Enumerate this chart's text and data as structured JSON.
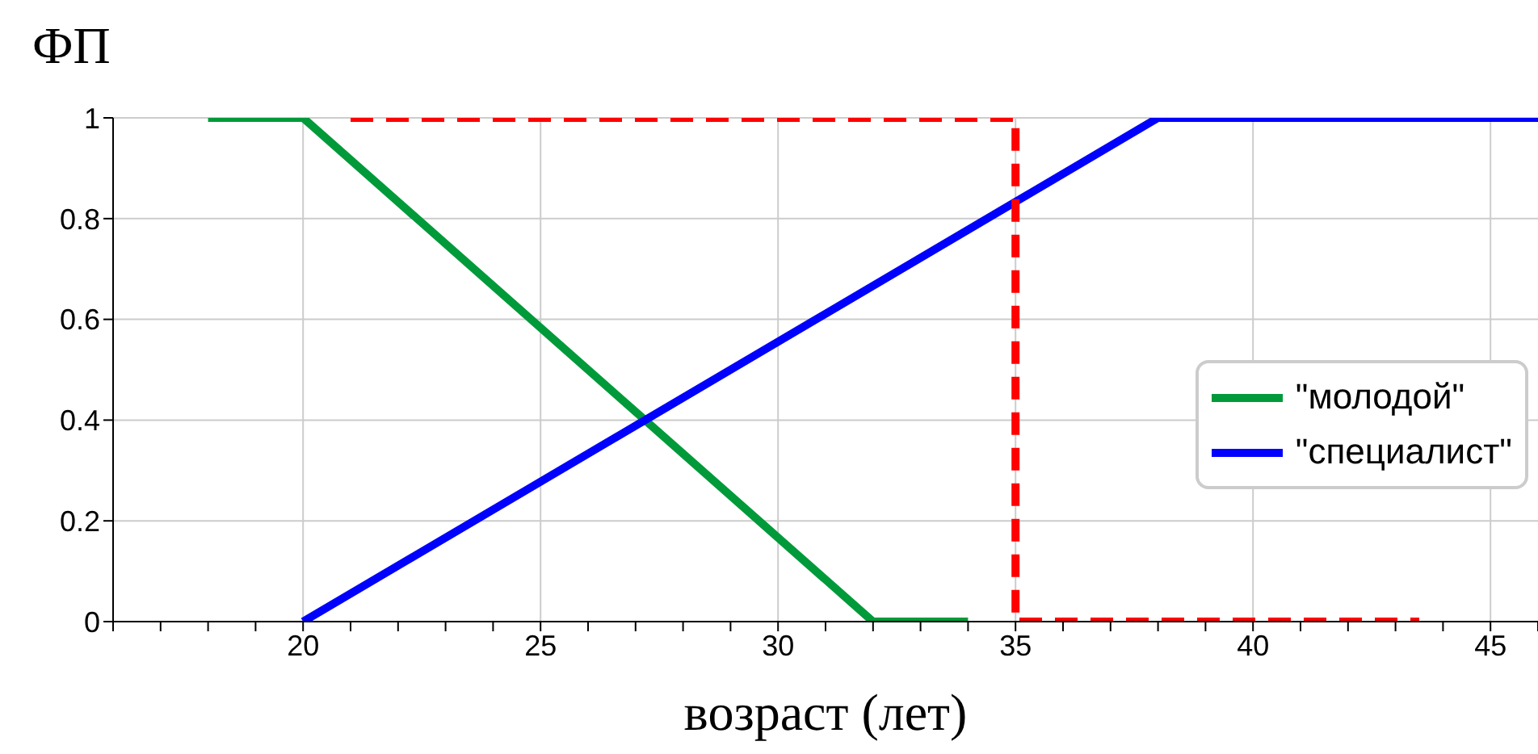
{
  "chart_data": {
    "type": "line",
    "ylabel": "ФП",
    "xlabel": "возраст (лет)",
    "xlim": [
      16,
      46
    ],
    "xticks": [
      {
        "value": 16,
        "label": null
      },
      {
        "value": 17,
        "label": null
      },
      {
        "value": 18,
        "label": null
      },
      {
        "value": 19,
        "label": null
      },
      20,
      {
        "value": 21,
        "label": null
      },
      {
        "value": 22,
        "label": null
      },
      {
        "value": 23,
        "label": null
      },
      {
        "value": 24,
        "label": null
      },
      25,
      {
        "value": 26,
        "label": null
      },
      {
        "value": 27,
        "label": null
      },
      {
        "value": 28,
        "label": null
      },
      {
        "value": 29,
        "label": null
      },
      30,
      {
        "value": 31,
        "label": null
      },
      {
        "value": 32,
        "label": null
      },
      {
        "value": 33,
        "label": null
      },
      {
        "value": 34,
        "label": null
      },
      35,
      {
        "value": 36,
        "label": null
      },
      {
        "value": 37,
        "label": null
      },
      {
        "value": 38,
        "label": null
      },
      {
        "value": 39,
        "label": null
      },
      40,
      {
        "value": 41,
        "label": null
      },
      {
        "value": 42,
        "label": null
      },
      {
        "value": 43,
        "label": null
      },
      {
        "value": 44,
        "label": null
      },
      45,
      {
        "value": 46,
        "label": null
      }
    ],
    "ylim": [
      0,
      1
    ],
    "yticks": [
      0,
      0.2,
      0.4,
      0.6,
      0.8,
      1
    ],
    "grid": true,
    "legend": "right",
    "marker": "none",
    "series": [
      {
        "name": "\"молодой\"",
        "color": "#009a3a",
        "x": [
          18,
          20,
          32,
          34
        ],
        "values": [
          1,
          1,
          0,
          0
        ],
        "line_style": "solid"
      },
      {
        "name": "\"специалист\"",
        "color": "#0000ff",
        "x": [
          20,
          38,
          46
        ],
        "values": [
          0,
          1,
          1
        ],
        "line_style": "solid"
      },
      {
        "color": "#ff0000",
        "x": [
          21,
          35,
          35,
          43.5
        ],
        "values": [
          1,
          1,
          0,
          0
        ],
        "line_style": "dashed"
      }
    ]
  }
}
